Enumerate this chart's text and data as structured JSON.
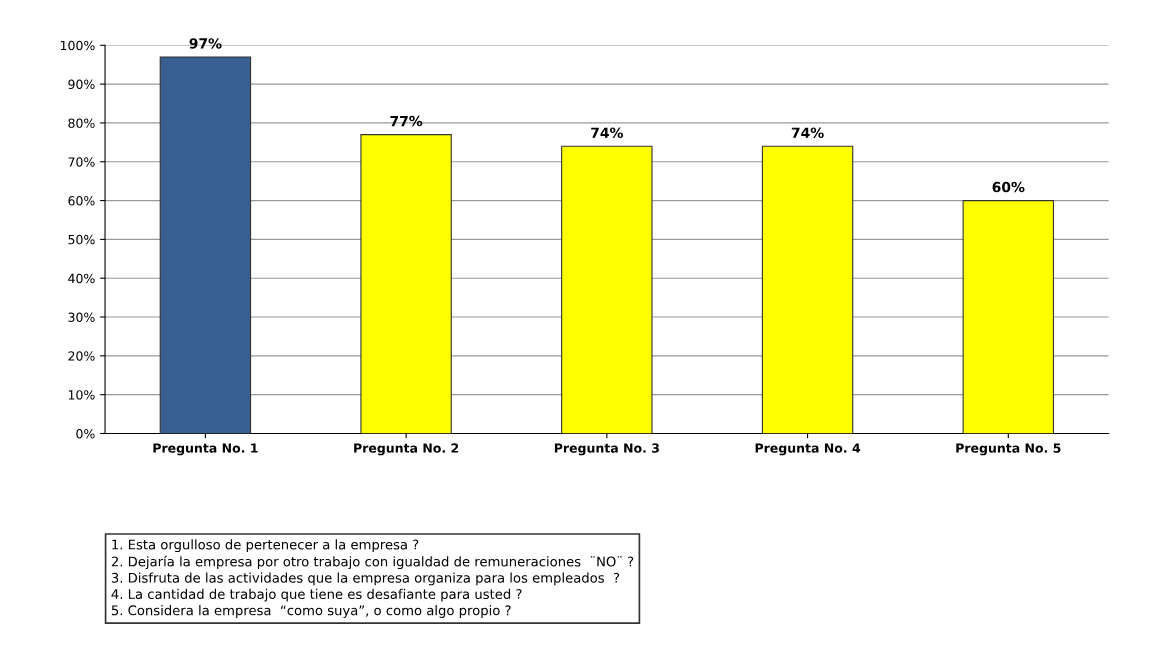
{
  "chart_data": {
    "type": "bar",
    "categories": [
      "Pregunta No. 1",
      "Pregunta No. 2",
      "Pregunta No. 3",
      "Pregunta No. 4",
      "Pregunta No. 5"
    ],
    "values": [
      97,
      77,
      74,
      74,
      60
    ],
    "colors": [
      "#375f91",
      "#ffff00",
      "#ffff00",
      "#ffff00",
      "#ffff00"
    ],
    "value_labels": [
      "97%",
      "77%",
      "74%",
      "74%",
      "60%"
    ],
    "ylim": [
      0,
      100
    ],
    "yticks": [
      {
        "value": 0,
        "label": "0%"
      },
      {
        "value": 10,
        "label": "10%"
      },
      {
        "value": 20,
        "label": "20%"
      },
      {
        "value": 30,
        "label": "30%"
      },
      {
        "value": 40,
        "label": "40%"
      },
      {
        "value": 50,
        "label": "50%"
      },
      {
        "value": 60,
        "label": "60%"
      },
      {
        "value": 70,
        "label": "70%"
      },
      {
        "value": 80,
        "label": "80%"
      },
      {
        "value": 90,
        "label": "90%"
      },
      {
        "value": 100,
        "label": "100%"
      }
    ],
    "grid": "y",
    "annotations": [
      "1. Esta orgulloso de pertenecer a la empresa ?",
      "2. Dejaría la empresa por otro trabajo con igualdad de remuneraciones  ¨NO¨ ?",
      "3. Disfruta de las actividades que la empresa organiza para los empleados  ?",
      "4. La cantidad de trabajo que tiene es desafiante para usted ?",
      "5. Considera la empresa  “como suya”, o como algo propio ?"
    ]
  }
}
